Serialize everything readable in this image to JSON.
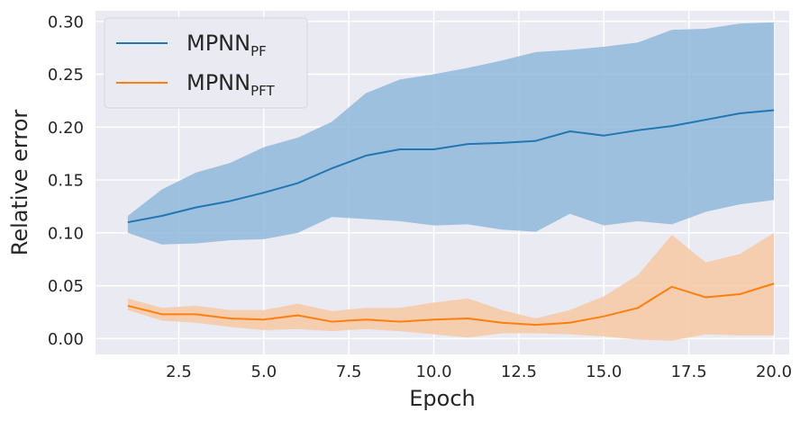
{
  "chart_data": {
    "type": "line",
    "xlabel": "Epoch",
    "ylabel": "Relative error",
    "xlim": [
      0.05,
      20.45
    ],
    "ylim": [
      -0.015,
      0.31
    ],
    "xticks": [
      "2.5",
      "5.0",
      "7.5",
      "10.0",
      "12.5",
      "15.0",
      "17.5",
      "20.0"
    ],
    "yticks": [
      "0.00",
      "0.05",
      "0.10",
      "0.15",
      "0.20",
      "0.25",
      "0.30"
    ],
    "grid": true,
    "legend_position": "top-left",
    "x": [
      1,
      2,
      3,
      4,
      5,
      6,
      7,
      8,
      9,
      10,
      11,
      12,
      13,
      14,
      15,
      16,
      17,
      18,
      19,
      20
    ],
    "series": [
      {
        "name": "MPNN",
        "name_sub": "PF",
        "color": "#1f77b4",
        "band_color": "#8fb8db",
        "values": [
          0.11,
          0.116,
          0.124,
          0.13,
          0.138,
          0.147,
          0.161,
          0.173,
          0.179,
          0.179,
          0.184,
          0.185,
          0.187,
          0.196,
          0.192,
          0.197,
          0.201,
          0.207,
          0.213,
          0.216
        ],
        "lower": [
          0.1,
          0.089,
          0.09,
          0.093,
          0.094,
          0.1,
          0.115,
          0.113,
          0.111,
          0.107,
          0.108,
          0.103,
          0.101,
          0.118,
          0.107,
          0.111,
          0.108,
          0.12,
          0.127,
          0.131
        ],
        "upper": [
          0.116,
          0.141,
          0.157,
          0.166,
          0.181,
          0.19,
          0.205,
          0.232,
          0.245,
          0.25,
          0.256,
          0.263,
          0.271,
          0.273,
          0.276,
          0.28,
          0.292,
          0.293,
          0.298,
          0.299
        ]
      },
      {
        "name": "MPNN",
        "name_sub": "PFT",
        "color": "#ff7f0e",
        "band_color": "#f7c8a3",
        "values": [
          0.031,
          0.023,
          0.023,
          0.019,
          0.018,
          0.022,
          0.016,
          0.018,
          0.016,
          0.018,
          0.019,
          0.015,
          0.013,
          0.015,
          0.021,
          0.029,
          0.049,
          0.039,
          0.042,
          0.052
        ],
        "lower": [
          0.027,
          0.017,
          0.015,
          0.011,
          0.008,
          0.009,
          0.007,
          0.009,
          0.007,
          0.004,
          0.001,
          0.005,
          0.005,
          0.004,
          0.002,
          -0.001,
          -0.002,
          0.004,
          0.003,
          0.003
        ],
        "upper": [
          0.038,
          0.029,
          0.031,
          0.027,
          0.027,
          0.033,
          0.026,
          0.029,
          0.029,
          0.034,
          0.038,
          0.027,
          0.019,
          0.027,
          0.04,
          0.06,
          0.098,
          0.072,
          0.08,
          0.1
        ]
      }
    ]
  }
}
